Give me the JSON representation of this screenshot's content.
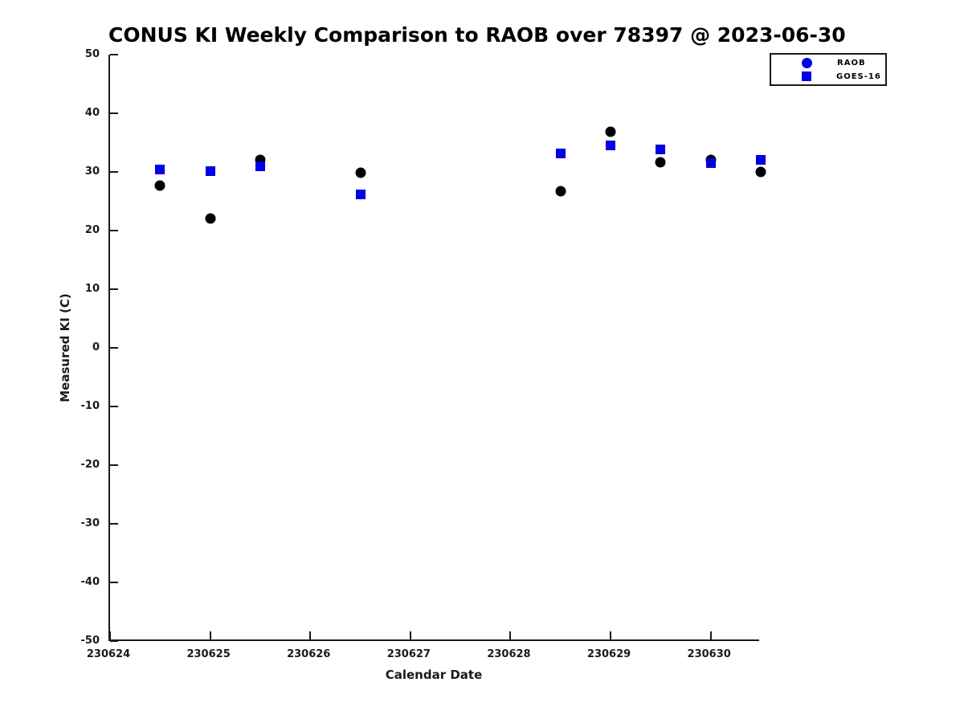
{
  "figure": {
    "title": "CONUS KI Weekly Comparison to RAOB over 78397 @ 2023-06-30",
    "xlabel": "Calendar Date",
    "ylabel": "Measured KI (C)"
  },
  "legend": {
    "items": [
      {
        "label": "RAOB",
        "marker": "circle",
        "color": "#0000ee"
      },
      {
        "label": "GOES-16",
        "marker": "square",
        "color": "#0000ee"
      }
    ]
  },
  "chart_data": {
    "type": "scatter",
    "title": "CONUS KI Weekly Comparison to RAOB over 78397 @ 2023-06-30",
    "xlabel": "Calendar Date",
    "ylabel": "Measured KI (C)",
    "xlim": [
      230624,
      230630.5
    ],
    "ylim": [
      -50,
      50
    ],
    "grid": false,
    "legend_position": "outside-upper-right",
    "x_ticks": [
      {
        "v": 230624,
        "label": "230624"
      },
      {
        "v": 230625,
        "label": "230625"
      },
      {
        "v": 230626,
        "label": "230626"
      },
      {
        "v": 230627,
        "label": "230627"
      },
      {
        "v": 230628,
        "label": "230628"
      },
      {
        "v": 230629,
        "label": "230629"
      },
      {
        "v": 230630,
        "label": "230630"
      }
    ],
    "y_ticks": [
      {
        "v": 50,
        "label": "50"
      },
      {
        "v": 40,
        "label": "40"
      },
      {
        "v": 30,
        "label": "30"
      },
      {
        "v": 20,
        "label": "20"
      },
      {
        "v": 10,
        "label": "10"
      },
      {
        "v": 0,
        "label": "0"
      },
      {
        "v": -10,
        "label": "-10"
      },
      {
        "v": -20,
        "label": "-20"
      },
      {
        "v": -30,
        "label": "-30"
      },
      {
        "v": -40,
        "label": "-40"
      },
      {
        "v": -50,
        "label": "-50"
      }
    ],
    "series": [
      {
        "name": "RAOB",
        "marker": "circle",
        "color": "#000000",
        "edge_color": "#000000",
        "x": [
          230624.5,
          230625.0,
          230625.5,
          230626.5,
          230628.5,
          230629.0,
          230629.5,
          230630.0,
          230630.5
        ],
        "y": [
          27.7,
          22.0,
          32.0,
          29.9,
          26.7,
          36.9,
          31.7,
          32.0,
          30.0
        ]
      },
      {
        "name": "GOES-16",
        "marker": "square",
        "color": "#0000f0",
        "edge_color": "#0000c0",
        "x": [
          230624.5,
          230625.0,
          230625.5,
          230626.5,
          230628.5,
          230629.0,
          230629.5,
          230630.0,
          230630.5
        ],
        "y": [
          30.4,
          30.2,
          31.0,
          26.1,
          33.2,
          34.5,
          33.9,
          31.5,
          32.1
        ]
      }
    ]
  }
}
